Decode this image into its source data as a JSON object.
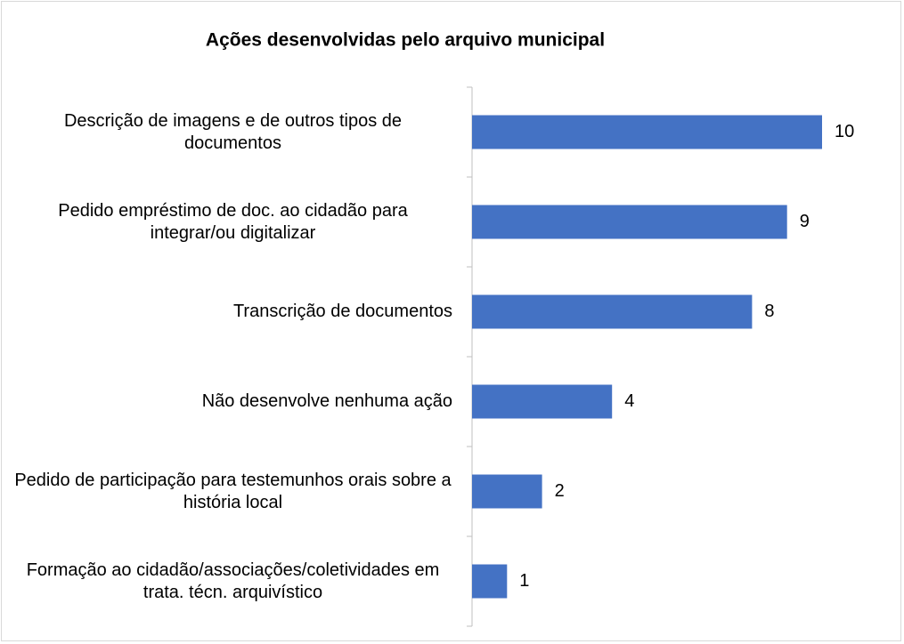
{
  "chart_data": {
    "type": "bar",
    "orientation": "horizontal",
    "title": "Ações desenvolvidas pelo arquivo municipal",
    "categories": [
      "Descrição de imagens e de outros tipos de documentos",
      "Pedido empréstimo de doc. ao cidadão para integrar/ou digitalizar",
      "Transcrição de documentos",
      "Não desenvolve nenhuma ação",
      "Pedido de participação para testemunhos orais sobre a história local",
      "Formação ao cidadão/associações/coletividades em trata. técn. arquivístico"
    ],
    "values": [
      10,
      9,
      8,
      4,
      2,
      1
    ],
    "color": "#4472c4",
    "xlim": [
      0,
      10
    ]
  }
}
